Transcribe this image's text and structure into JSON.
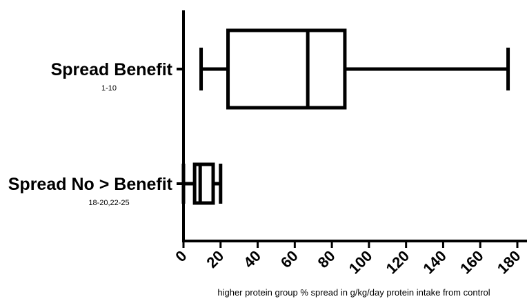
{
  "chart_data": {
    "type": "boxplot",
    "orientation": "horizontal",
    "xlabel": "higher protein group % spread in g/kg/day protein intake from control",
    "xlim": [
      0,
      180
    ],
    "xticks": [
      0,
      20,
      40,
      60,
      80,
      100,
      120,
      140,
      160,
      180
    ],
    "grid": false,
    "categories": [
      {
        "label": "Spread Benefit",
        "sublabel": "1-10",
        "min": 9.5,
        "q1": 24,
        "median": 67,
        "q3": 87,
        "max": 175
      },
      {
        "label": "Spread No > Benefit",
        "sublabel": "18-20,22-25",
        "min": 0,
        "q1": 6,
        "median": 9,
        "q3": 16,
        "max": 20
      }
    ]
  }
}
